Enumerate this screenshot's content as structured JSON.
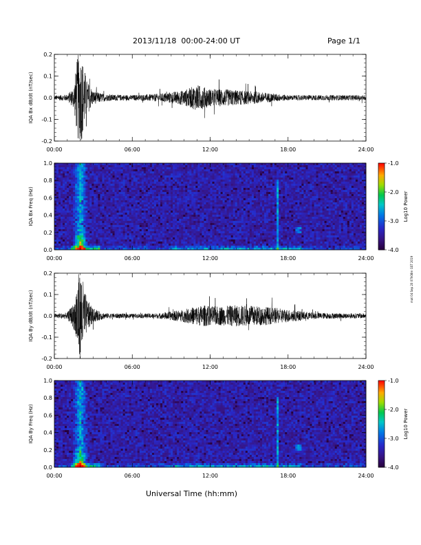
{
  "header": {
    "title": "2013/11/18  00:00-24:00 UT",
    "page": "Page 1/1"
  },
  "footer": {
    "xaxis_title": "Universal Time (hh:mm)",
    "footnote": "mat 04 Sep 20 07h08m GST 2019"
  },
  "colorbar": {
    "label": "Log10 Power",
    "ticks": [
      "-1.0",
      "-2.0",
      "-3.0",
      "-4.0"
    ],
    "range": [
      -4.0,
      -1.0
    ]
  },
  "chart_data": [
    {
      "type": "line",
      "ylabel": "IQA Bx dB/dt (nT/sec)",
      "x_ticks": [
        "00:00",
        "06:00",
        "12:00",
        "18:00",
        "24:00"
      ],
      "y_ticks": [
        "0.2",
        "0.1",
        "0.0",
        "-0.1",
        "-0.2"
      ],
      "xlim": [
        0,
        24
      ],
      "ylim": [
        -0.2,
        0.2
      ],
      "x": [
        0,
        1,
        1.5,
        1.8,
        2.1,
        2.5,
        3,
        4,
        6,
        8,
        10,
        11,
        11.5,
        12,
        13,
        14,
        16,
        18,
        20,
        22,
        24
      ],
      "amplitude": [
        0.01,
        0.015,
        0.05,
        0.2,
        0.2,
        0.08,
        0.03,
        0.015,
        0.012,
        0.018,
        0.035,
        0.06,
        0.05,
        0.04,
        0.04,
        0.035,
        0.025,
        0.012,
        0.012,
        0.012,
        0.012
      ]
    },
    {
      "type": "heatmap",
      "ylabel": "IQA Bx Freq (Hz)",
      "x_ticks": [
        "00:00",
        "06:00",
        "12:00",
        "18:00",
        "24:00"
      ],
      "y_ticks": [
        "1.0",
        "0.8",
        "0.6",
        "0.4",
        "0.2",
        "0.0"
      ],
      "xlim": [
        0,
        24
      ],
      "ylim": [
        0.0,
        1.0
      ],
      "log10_power_range": [
        -4.0,
        -1.0
      ],
      "features": [
        "broadband burst near 02:00",
        "narrow line near 17:15",
        "low-frequency enhancement 10:00-18:00"
      ]
    },
    {
      "type": "line",
      "ylabel": "IQA By dB/dt (nT/sec)",
      "x_ticks": [
        "00:00",
        "06:00",
        "12:00",
        "18:00",
        "24:00"
      ],
      "y_ticks": [
        "0.2",
        "0.1",
        "0.0",
        "-0.1",
        "-0.2"
      ],
      "xlim": [
        0,
        24
      ],
      "ylim": [
        -0.2,
        0.2
      ],
      "x": [
        0,
        1,
        1.5,
        1.8,
        2.1,
        2.5,
        3,
        4,
        6,
        8,
        10,
        11,
        11.5,
        12,
        13,
        14,
        16,
        18,
        20,
        22,
        24
      ],
      "amplitude": [
        0.01,
        0.015,
        0.06,
        0.2,
        0.2,
        0.08,
        0.03,
        0.012,
        0.01,
        0.012,
        0.03,
        0.045,
        0.05,
        0.045,
        0.045,
        0.05,
        0.045,
        0.03,
        0.015,
        0.012,
        0.012
      ]
    },
    {
      "type": "heatmap",
      "ylabel": "IQA By Freq (Hz)",
      "x_ticks": [
        "00:00",
        "06:00",
        "12:00",
        "18:00",
        "24:00"
      ],
      "y_ticks": [
        "1.0",
        "0.8",
        "0.6",
        "0.4",
        "0.2",
        "0.0"
      ],
      "xlim": [
        0,
        24
      ],
      "ylim": [
        0.0,
        1.0
      ],
      "log10_power_range": [
        -4.0,
        -1.0
      ],
      "features": [
        "broadband burst near 02:00",
        "narrow line near 17:15",
        "low-frequency enhancement 10:00-18:00"
      ]
    }
  ]
}
